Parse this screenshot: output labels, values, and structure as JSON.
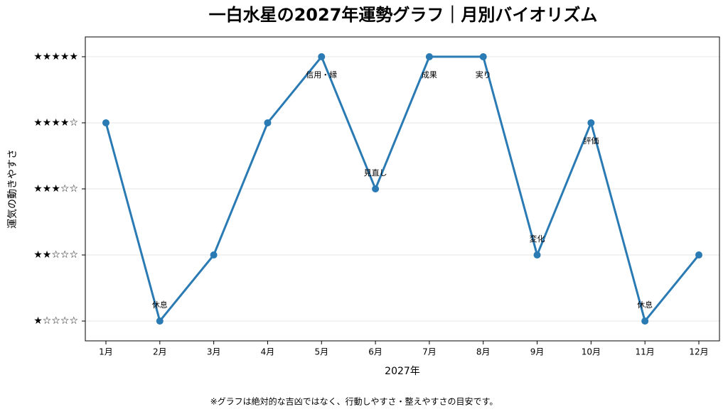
{
  "chart_data": {
    "type": "line",
    "title": "一白水星の2027年運勢グラフ｜月別バイオリズム",
    "x_label": "2027年",
    "y_label": "運気の動きやすさ",
    "note": "※グラフは絶対的な吉凶ではなく、行動しやすさ・整えやすさの目安です。",
    "categories": [
      "1月",
      "2月",
      "3月",
      "4月",
      "5月",
      "6月",
      "7月",
      "8月",
      "9月",
      "10月",
      "11月",
      "12月"
    ],
    "series": [
      {
        "name": "運気",
        "color": "#2a7ab4",
        "values": [
          4,
          1,
          2,
          4,
          5,
          3,
          5,
          5,
          2,
          4,
          1,
          2
        ]
      }
    ],
    "point_labels": [
      null,
      "休息",
      null,
      null,
      "信用・縁",
      "見直し",
      "成果",
      "実り",
      "変化",
      "評価",
      "休息",
      null
    ],
    "ylim": [
      0.7,
      5.3
    ],
    "yticks": [
      {
        "value": 1,
        "label": "★☆☆☆☆"
      },
      {
        "value": 2,
        "label": "★★☆☆☆"
      },
      {
        "value": 3,
        "label": "★★★☆☆"
      },
      {
        "value": 4,
        "label": "★★★★☆"
      },
      {
        "value": 5,
        "label": "★★★★★"
      }
    ],
    "grid": true
  }
}
